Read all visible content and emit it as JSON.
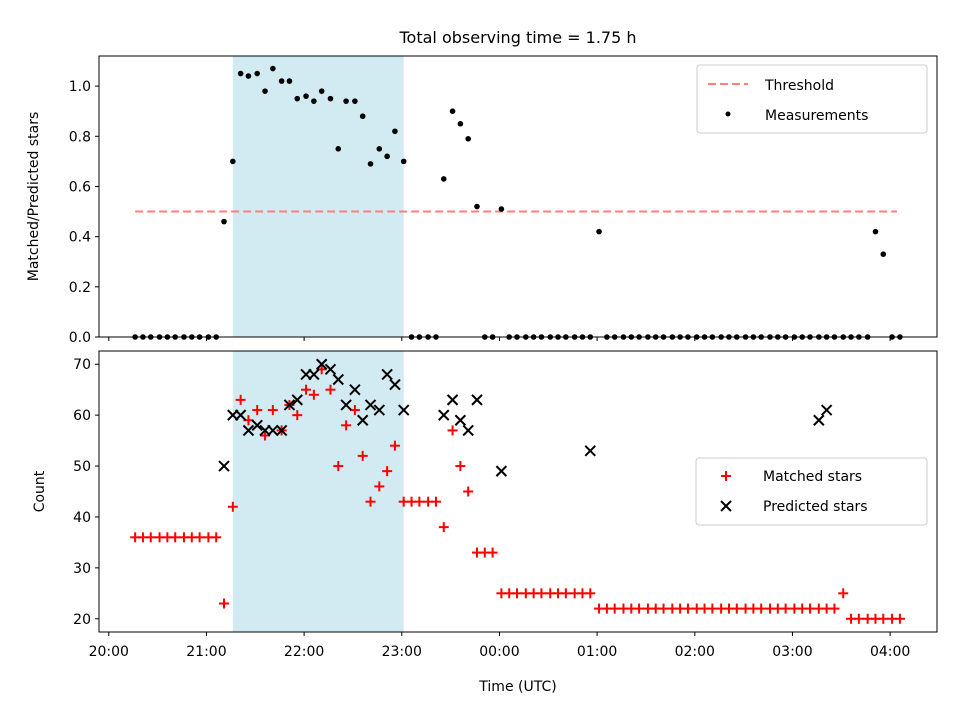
{
  "figure": {
    "title": "Total observing time = 1.75 h",
    "xlabel": "Time (UTC)",
    "x_tick_labels": [
      "20:00",
      "21:00",
      "22:00",
      "23:00",
      "00:00",
      "01:00",
      "02:00",
      "03:00",
      "04:00"
    ]
  },
  "colors": {
    "shade": "#add8e6",
    "threshold": "#ff7f7f",
    "measurement": "#000000",
    "matched": "#ff0000",
    "predicted": "#000000"
  },
  "chart_data": [
    {
      "type": "scatter",
      "ylabel": "Matched/Predicted stars",
      "xlim_hours": [
        19.9,
        28.48
      ],
      "ylim": [
        0,
        1.12
      ],
      "y_ticks": [
        0.0,
        0.2,
        0.4,
        0.6,
        0.8,
        1.0
      ],
      "y_tick_labels": [
        "0.0",
        "0.2",
        "0.4",
        "0.6",
        "0.8",
        "1.0"
      ],
      "shaded_interval_hours": [
        21.27,
        23.02
      ],
      "legend": {
        "location": "upper right",
        "entries": [
          "Threshold",
          "Measurements"
        ]
      },
      "threshold": {
        "name": "Threshold",
        "value": 0.5,
        "x_hours": [
          20.27,
          28.07
        ]
      },
      "series": [
        {
          "name": "Measurements",
          "x_hours": [
            20.27,
            20.35,
            20.43,
            20.52,
            20.6,
            20.68,
            20.77,
            20.85,
            20.93,
            21.02,
            21.1,
            21.18,
            21.27,
            21.35,
            21.43,
            21.52,
            21.6,
            21.68,
            21.77,
            21.85,
            21.93,
            22.02,
            22.1,
            22.18,
            22.27,
            22.35,
            22.43,
            22.52,
            22.6,
            22.68,
            22.77,
            22.85,
            22.93,
            23.02,
            23.1,
            23.18,
            23.27,
            23.35,
            23.43,
            23.52,
            23.6,
            23.68,
            23.77,
            23.85,
            23.93,
            24.02,
            24.1,
            24.18,
            24.27,
            24.35,
            24.43,
            24.52,
            24.6,
            24.68,
            24.77,
            24.85,
            24.93,
            25.02,
            25.1,
            25.18,
            25.27,
            25.35,
            25.43,
            25.52,
            25.6,
            25.68,
            25.77,
            25.85,
            25.93,
            26.02,
            26.1,
            26.18,
            26.27,
            26.35,
            26.43,
            26.52,
            26.6,
            26.68,
            26.77,
            26.85,
            26.93,
            27.02,
            27.1,
            27.18,
            27.27,
            27.35,
            27.43,
            27.52,
            27.6,
            27.68,
            27.77,
            27.85,
            27.93,
            28.02,
            28.1
          ],
          "values": [
            0,
            0,
            0,
            0,
            0,
            0,
            0,
            0,
            0,
            0,
            0,
            0.46,
            0.7,
            1.05,
            1.04,
            1.05,
            0.98,
            1.07,
            1.02,
            1.02,
            0.95,
            0.96,
            0.94,
            0.98,
            0.95,
            0.75,
            0.94,
            0.94,
            0.88,
            0.69,
            0.75,
            0.72,
            0.82,
            0.7,
            0,
            0,
            0,
            0,
            0.63,
            0.9,
            0.85,
            0.79,
            0.52,
            0,
            0,
            0.51,
            0,
            0,
            0,
            0,
            0,
            0,
            0,
            0,
            0,
            0,
            0,
            0.42,
            0,
            0,
            0,
            0,
            0,
            0,
            0,
            0,
            0,
            0,
            0,
            0,
            0,
            0,
            0,
            0,
            0,
            0,
            0,
            0,
            0,
            0,
            0,
            0,
            0,
            0,
            0,
            0,
            0,
            0,
            0,
            0,
            0,
            0.42,
            0.33,
            0,
            0
          ]
        }
      ]
    },
    {
      "type": "scatter",
      "ylabel": "Count",
      "xlabel": "Time (UTC)",
      "xlim_hours": [
        19.9,
        28.48
      ],
      "ylim": [
        17.4,
        72.6
      ],
      "y_ticks": [
        20,
        30,
        40,
        50,
        60,
        70
      ],
      "y_tick_labels": [
        "20",
        "30",
        "40",
        "50",
        "60",
        "70"
      ],
      "shaded_interval_hours": [
        21.27,
        23.02
      ],
      "legend": {
        "location": "center right",
        "entries": [
          "Matched stars",
          "Predicted stars"
        ]
      },
      "series": [
        {
          "name": "Matched stars",
          "marker": "plus",
          "x_hours": [
            20.27,
            20.35,
            20.43,
            20.52,
            20.6,
            20.68,
            20.77,
            20.85,
            20.93,
            21.02,
            21.1,
            21.18,
            21.27,
            21.35,
            21.43,
            21.52,
            21.6,
            21.68,
            21.77,
            21.85,
            21.93,
            22.02,
            22.1,
            22.18,
            22.27,
            22.35,
            22.43,
            22.52,
            22.6,
            22.68,
            22.77,
            22.85,
            22.93,
            23.02,
            23.1,
            23.18,
            23.27,
            23.35,
            23.43,
            23.52,
            23.6,
            23.68,
            23.77,
            23.85,
            23.93,
            24.02,
            24.1,
            24.18,
            24.27,
            24.35,
            24.43,
            24.52,
            24.6,
            24.68,
            24.77,
            24.85,
            24.93,
            25.02,
            25.1,
            25.18,
            25.27,
            25.35,
            25.43,
            25.52,
            25.6,
            25.68,
            25.77,
            25.85,
            25.93,
            26.02,
            26.1,
            26.18,
            26.27,
            26.35,
            26.43,
            26.52,
            26.6,
            26.68,
            26.77,
            26.85,
            26.93,
            27.02,
            27.1,
            27.18,
            27.27,
            27.35,
            27.43,
            27.52,
            27.6,
            27.68,
            27.77,
            27.85,
            27.93,
            28.02,
            28.1
          ],
          "values": [
            36,
            36,
            36,
            36,
            36,
            36,
            36,
            36,
            36,
            36,
            36,
            23,
            42,
            63,
            59,
            61,
            56,
            61,
            57,
            62,
            60,
            65,
            64,
            69,
            65,
            50,
            58,
            61,
            52,
            43,
            46,
            49,
            54,
            43,
            43,
            43,
            43,
            43,
            38,
            57,
            50,
            45,
            33,
            33,
            33,
            25,
            25,
            25,
            25,
            25,
            25,
            25,
            25,
            25,
            25,
            25,
            25,
            22,
            22,
            22,
            22,
            22,
            22,
            22,
            22,
            22,
            22,
            22,
            22,
            22,
            22,
            22,
            22,
            22,
            22,
            22,
            22,
            22,
            22,
            22,
            22,
            22,
            22,
            22,
            22,
            22,
            22,
            25,
            20,
            20,
            20,
            20,
            20,
            20,
            20
          ]
        },
        {
          "name": "Predicted stars",
          "marker": "x",
          "x_hours": [
            21.18,
            21.27,
            21.35,
            21.43,
            21.52,
            21.6,
            21.68,
            21.77,
            21.85,
            21.93,
            22.02,
            22.1,
            22.18,
            22.27,
            22.35,
            22.43,
            22.52,
            22.6,
            22.68,
            22.77,
            22.85,
            22.93,
            23.02,
            23.43,
            23.52,
            23.6,
            23.68,
            23.77,
            24.02,
            24.93,
            27.27,
            27.35
          ],
          "values": [
            50,
            60,
            60,
            57,
            58,
            57,
            57,
            57,
            62,
            63,
            68,
            68,
            70,
            69,
            67,
            62,
            65,
            59,
            62,
            61,
            68,
            66,
            61,
            60,
            63,
            59,
            57,
            63,
            49,
            53,
            59,
            61
          ]
        }
      ]
    }
  ]
}
